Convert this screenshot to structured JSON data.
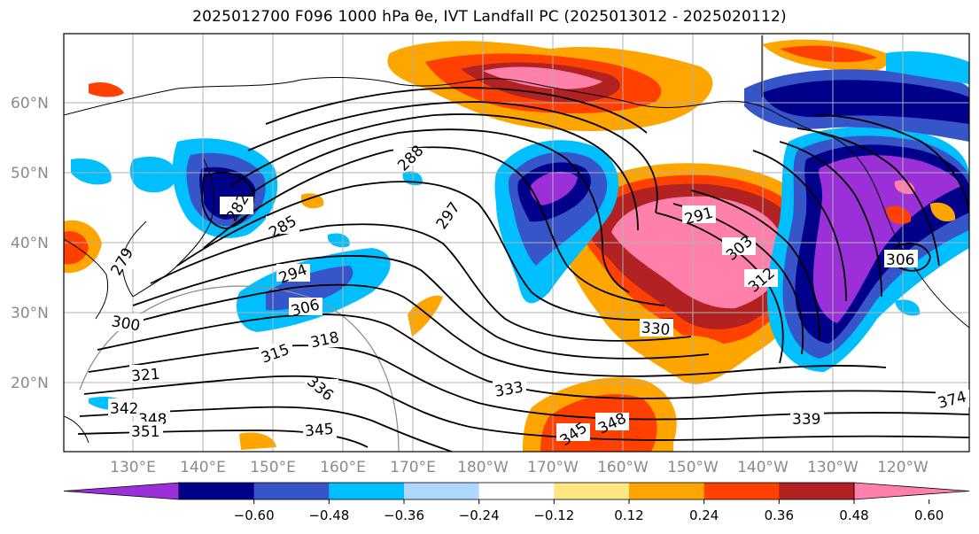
{
  "title": {
    "text": "2025012700 F096 1000 hPa θe, IVT Landfall PC (2025013012 - 2025020112)"
  },
  "map": {
    "lat_labels": [
      "60°N",
      "50°N",
      "40°N",
      "30°N",
      "20°N"
    ],
    "lon_labels": [
      "130°E",
      "140°E",
      "150°E",
      "160°E",
      "170°E",
      "180°W",
      "170°W",
      "160°W",
      "150°W",
      "140°W",
      "130°W",
      "120°W"
    ],
    "contour_labels": [
      "288",
      "285",
      "297",
      "291",
      "303",
      "294",
      "306",
      "312",
      "300",
      "315",
      "318",
      "330",
      "321",
      "336",
      "333",
      "342",
      "348",
      "351",
      "345",
      "345",
      "348",
      "339",
      "374",
      "306",
      "282",
      "279"
    ]
  },
  "colorbar": {
    "tick_labels": [
      "−0.60",
      "−0.48",
      "−0.36",
      "−0.24",
      "−0.12",
      "0.12",
      "0.24",
      "0.36",
      "0.48",
      "0.60"
    ],
    "colors": [
      "#9b30d9",
      "#00008b",
      "#3655c9",
      "#00bfff",
      "#add8ff",
      "#ffffff",
      "#ffe680",
      "#ffa500",
      "#ff4000",
      "#b22222",
      "#ff80ab"
    ]
  }
}
